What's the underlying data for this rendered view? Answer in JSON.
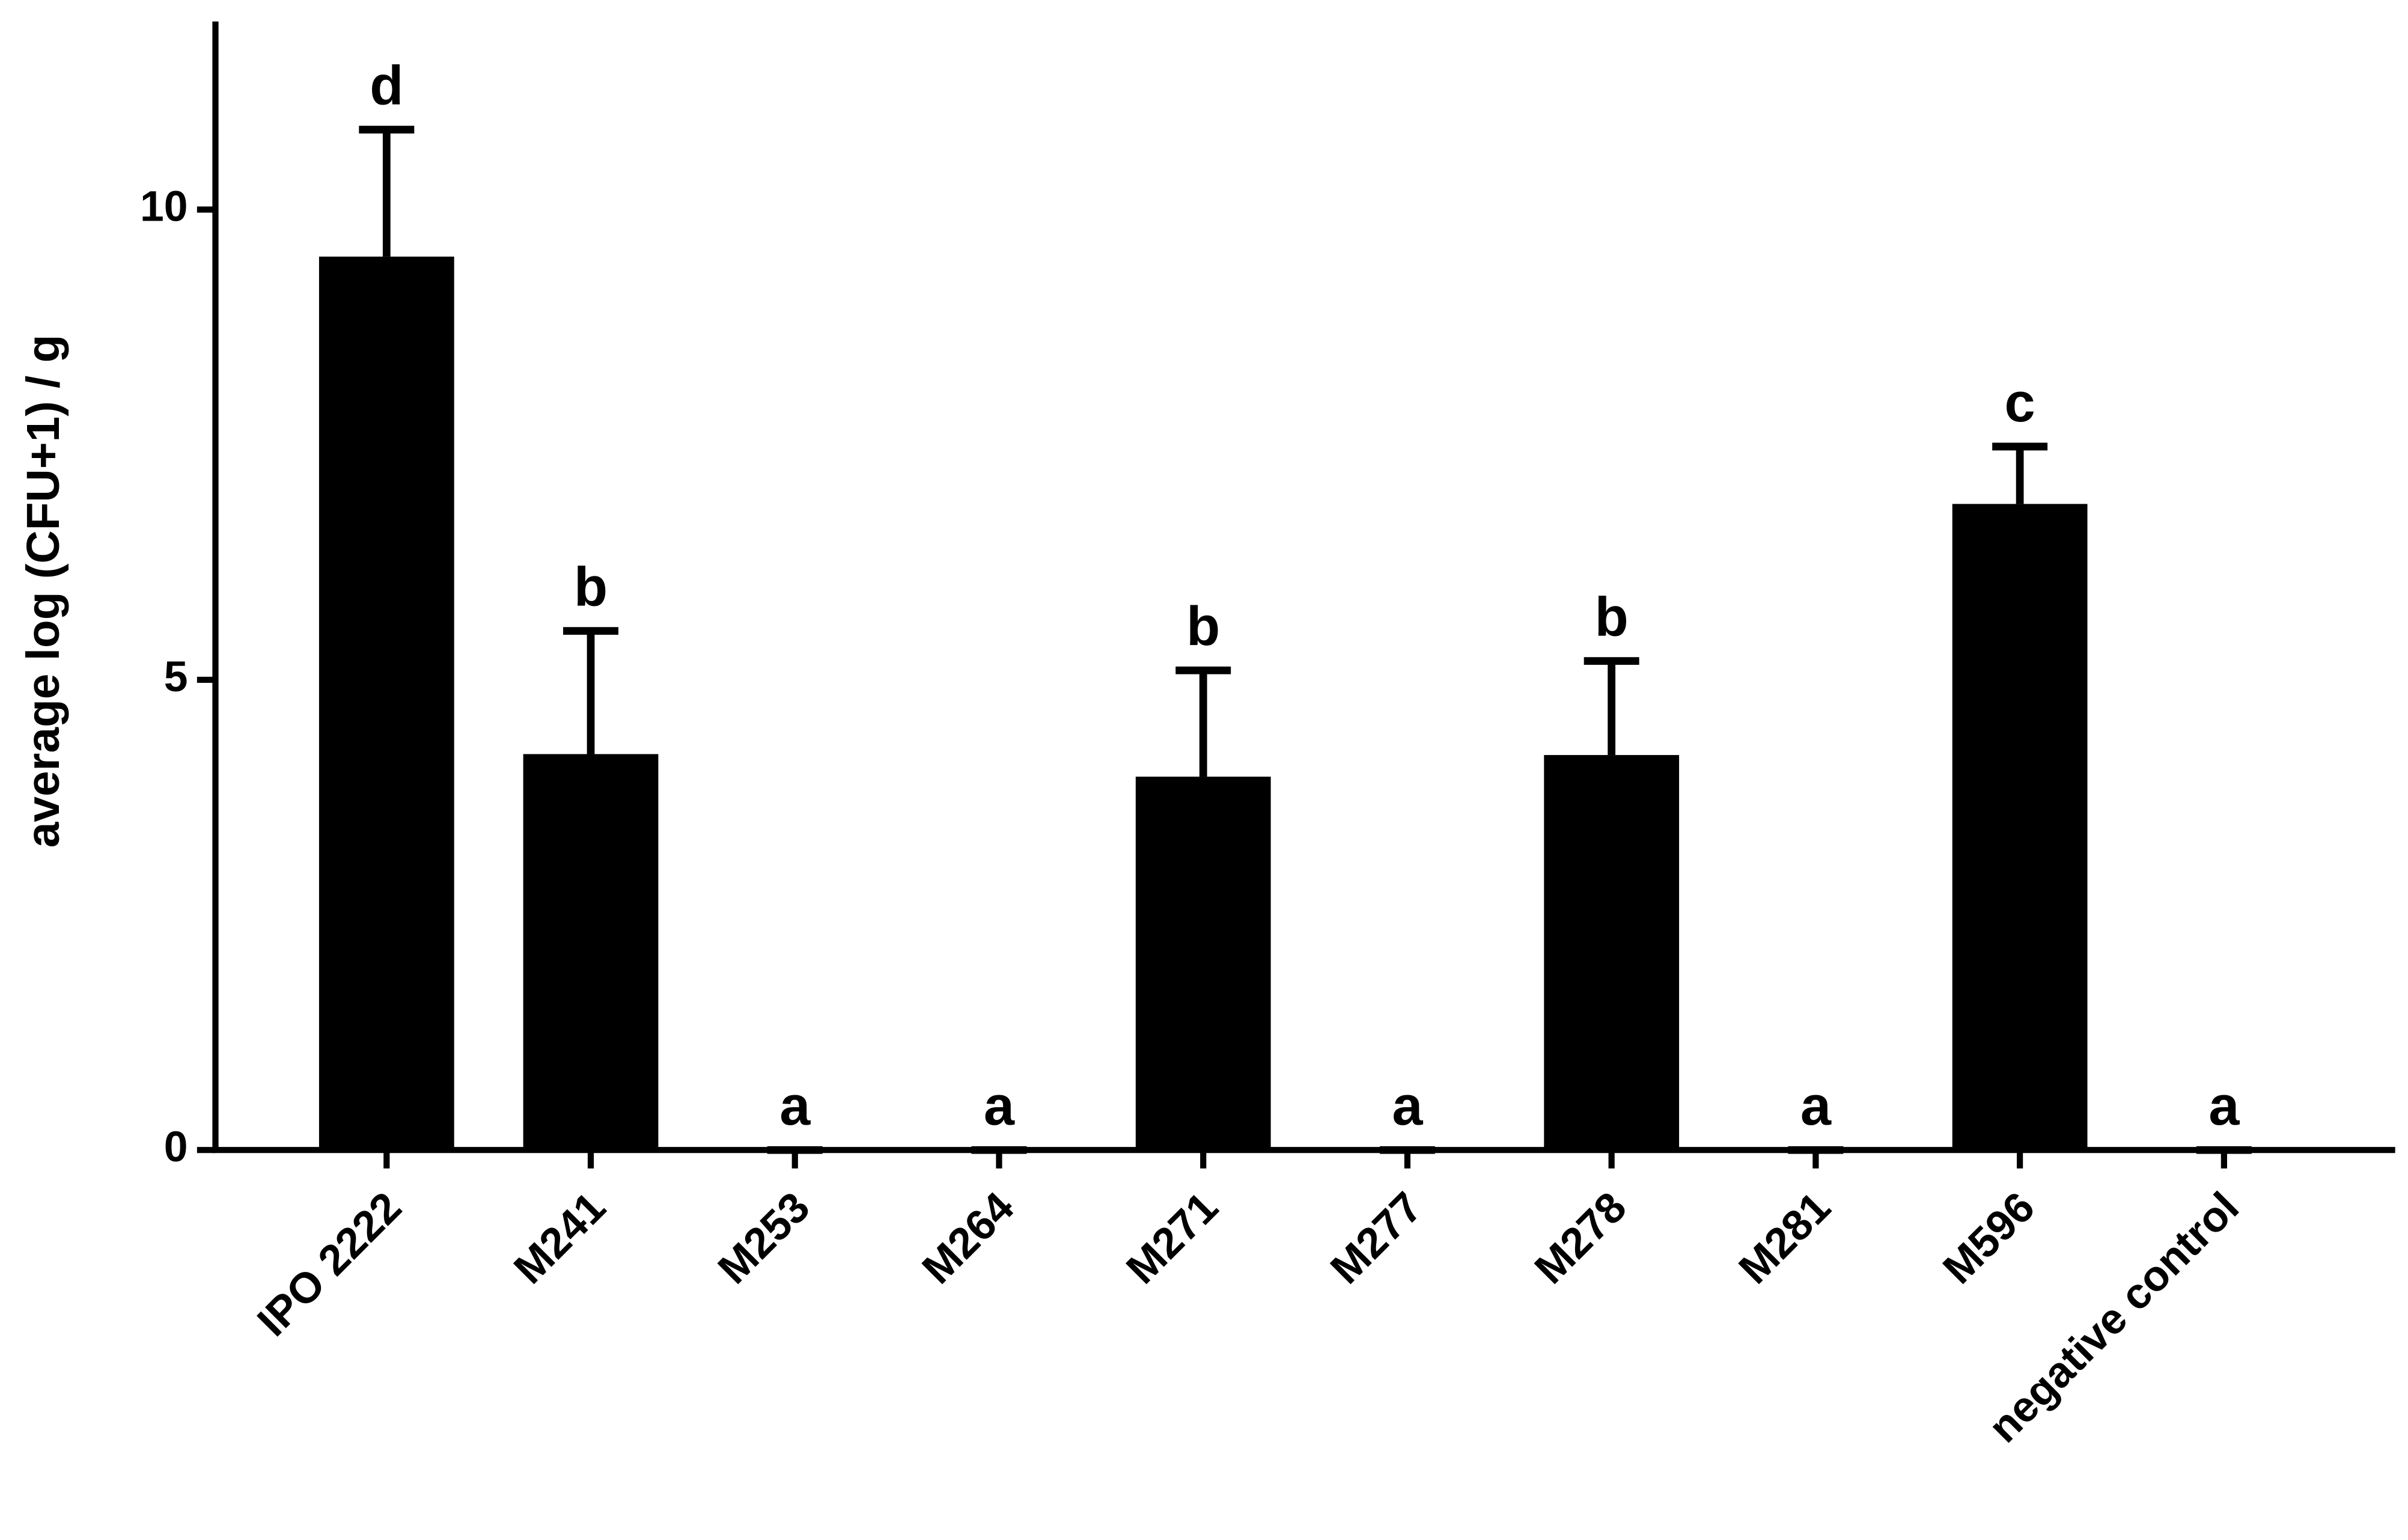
{
  "chart_data": {
    "type": "bar",
    "ylabel": "average log (CFU+1) / g",
    "categories": [
      "IPO 2222",
      "M241",
      "M253",
      "M264",
      "M271",
      "M277",
      "M278",
      "M281",
      "M596",
      "negative control"
    ],
    "values": [
      9.5,
      4.21,
      0,
      0,
      3.97,
      0,
      4.2,
      0,
      6.87,
      0
    ],
    "errors": [
      1.35,
      1.31,
      0,
      0,
      1.13,
      0,
      1.0,
      0,
      0.61,
      0
    ],
    "letters": [
      "d",
      "b",
      "a",
      "a",
      "b",
      "a",
      "b",
      "a",
      "c",
      "a"
    ],
    "color": "#000000",
    "ylim": [
      0,
      12
    ],
    "yticks": [
      0,
      5,
      10
    ],
    "grid": false
  }
}
